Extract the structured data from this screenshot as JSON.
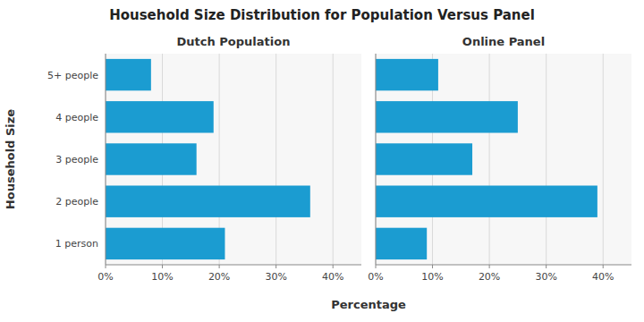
{
  "title": "Household Size Distribution for Population Versus Panel",
  "x_label": "Percentage",
  "y_label": "Household Size",
  "chart_data": [
    {
      "type": "bar",
      "orientation": "horizontal",
      "title": "Dutch Population",
      "categories": [
        "1 person",
        "2 people",
        "3 people",
        "4 people",
        "5+ people"
      ],
      "values": [
        0.21,
        0.36,
        0.16,
        0.19,
        0.08
      ],
      "color": "#1B9CD1",
      "xlim": [
        0,
        0.45
      ],
      "xticks": [
        {
          "value": 0,
          "label": "0%"
        },
        {
          "value": 0.1,
          "label": "10%"
        },
        {
          "value": 0.2,
          "label": "20%"
        },
        {
          "value": 0.3,
          "label": "30%"
        },
        {
          "value": 0.4,
          "label": "40%"
        }
      ],
      "grid": true
    },
    {
      "type": "bar",
      "orientation": "horizontal",
      "title": "Online Panel",
      "categories": [
        null,
        null,
        null,
        null,
        null
      ],
      "values": [
        0.09,
        0.39,
        0.17,
        0.25,
        0.11
      ],
      "color": "#1B9CD1",
      "xlim": [
        0,
        0.45
      ],
      "xticks": [
        {
          "value": 0,
          "label": "0%"
        },
        {
          "value": 0.1,
          "label": "10%"
        },
        {
          "value": 0.2,
          "label": "20%"
        },
        {
          "value": 0.3,
          "label": "30%"
        },
        {
          "value": 0.4,
          "label": "40%"
        }
      ],
      "grid": true
    }
  ]
}
